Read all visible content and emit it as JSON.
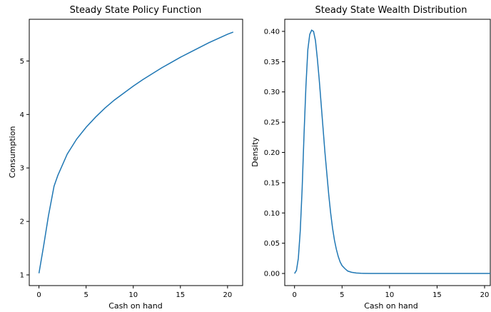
{
  "chart_data": [
    {
      "type": "line",
      "title": "Steady State Policy Function",
      "xlabel": "Cash on hand",
      "ylabel": "Consumption",
      "xlim": [
        -1.03,
        21.6
      ],
      "ylim": [
        0.8,
        5.78
      ],
      "xticks": [
        0,
        5,
        10,
        15,
        20
      ],
      "yticks": [
        1,
        2,
        3,
        4,
        5
      ],
      "xticklabels": [
        "0",
        "5",
        "10",
        "15",
        "20"
      ],
      "yticklabels": [
        "1",
        "2",
        "3",
        "4",
        "5"
      ],
      "series": [
        {
          "color": "#1f77b4",
          "x": [
            0,
            0.5,
            1.0,
            1.6,
            2.0,
            3.0,
            4.0,
            5.0,
            6.0,
            7.0,
            8.0,
            9.0,
            10.0,
            11.0,
            12.0,
            13.0,
            14.0,
            15.0,
            16.0,
            17.0,
            18.0,
            19.0,
            20.0,
            20.6
          ],
          "y": [
            1.03,
            1.55,
            2.1,
            2.66,
            2.86,
            3.26,
            3.54,
            3.76,
            3.95,
            4.12,
            4.27,
            4.4,
            4.53,
            4.65,
            4.76,
            4.87,
            4.97,
            5.07,
            5.16,
            5.25,
            5.34,
            5.42,
            5.5,
            5.54
          ]
        }
      ]
    },
    {
      "type": "line",
      "title": "Steady State Wealth Distribution",
      "xlabel": "Cash on hand",
      "ylabel": "Density",
      "xlim": [
        -1.03,
        20.6
      ],
      "ylim": [
        -0.02,
        0.42
      ],
      "xticks": [
        0,
        5,
        10,
        15,
        20
      ],
      "yticks": [
        0.0,
        0.05,
        0.1,
        0.15,
        0.2,
        0.25,
        0.3,
        0.35,
        0.4
      ],
      "xticklabels": [
        "0",
        "5",
        "10",
        "15",
        "20"
      ],
      "yticklabels": [
        "0.00",
        "0.05",
        "0.10",
        "0.15",
        "0.20",
        "0.25",
        "0.30",
        "0.35",
        "0.40"
      ],
      "series": [
        {
          "color": "#1f77b4",
          "x": [
            0,
            0.2,
            0.4,
            0.6,
            0.8,
            1.0,
            1.2,
            1.4,
            1.6,
            1.8,
            2.0,
            2.2,
            2.4,
            2.6,
            2.8,
            3.0,
            3.2,
            3.4,
            3.6,
            3.8,
            4.0,
            4.2,
            4.4,
            4.6,
            4.8,
            5.0,
            5.3,
            5.6,
            6.0,
            6.5,
            7.0,
            8.0,
            10.0,
            12.0,
            15.0,
            18.0,
            20.6
          ],
          "y": [
            0.0,
            0.005,
            0.025,
            0.07,
            0.14,
            0.23,
            0.31,
            0.37,
            0.395,
            0.402,
            0.4,
            0.385,
            0.355,
            0.32,
            0.28,
            0.24,
            0.2,
            0.165,
            0.13,
            0.1,
            0.075,
            0.055,
            0.04,
            0.028,
            0.019,
            0.013,
            0.008,
            0.004,
            0.002,
            0.0008,
            0.0003,
            0.0,
            0.0,
            0.0,
            0.0,
            0.0,
            0.0
          ]
        }
      ]
    }
  ]
}
